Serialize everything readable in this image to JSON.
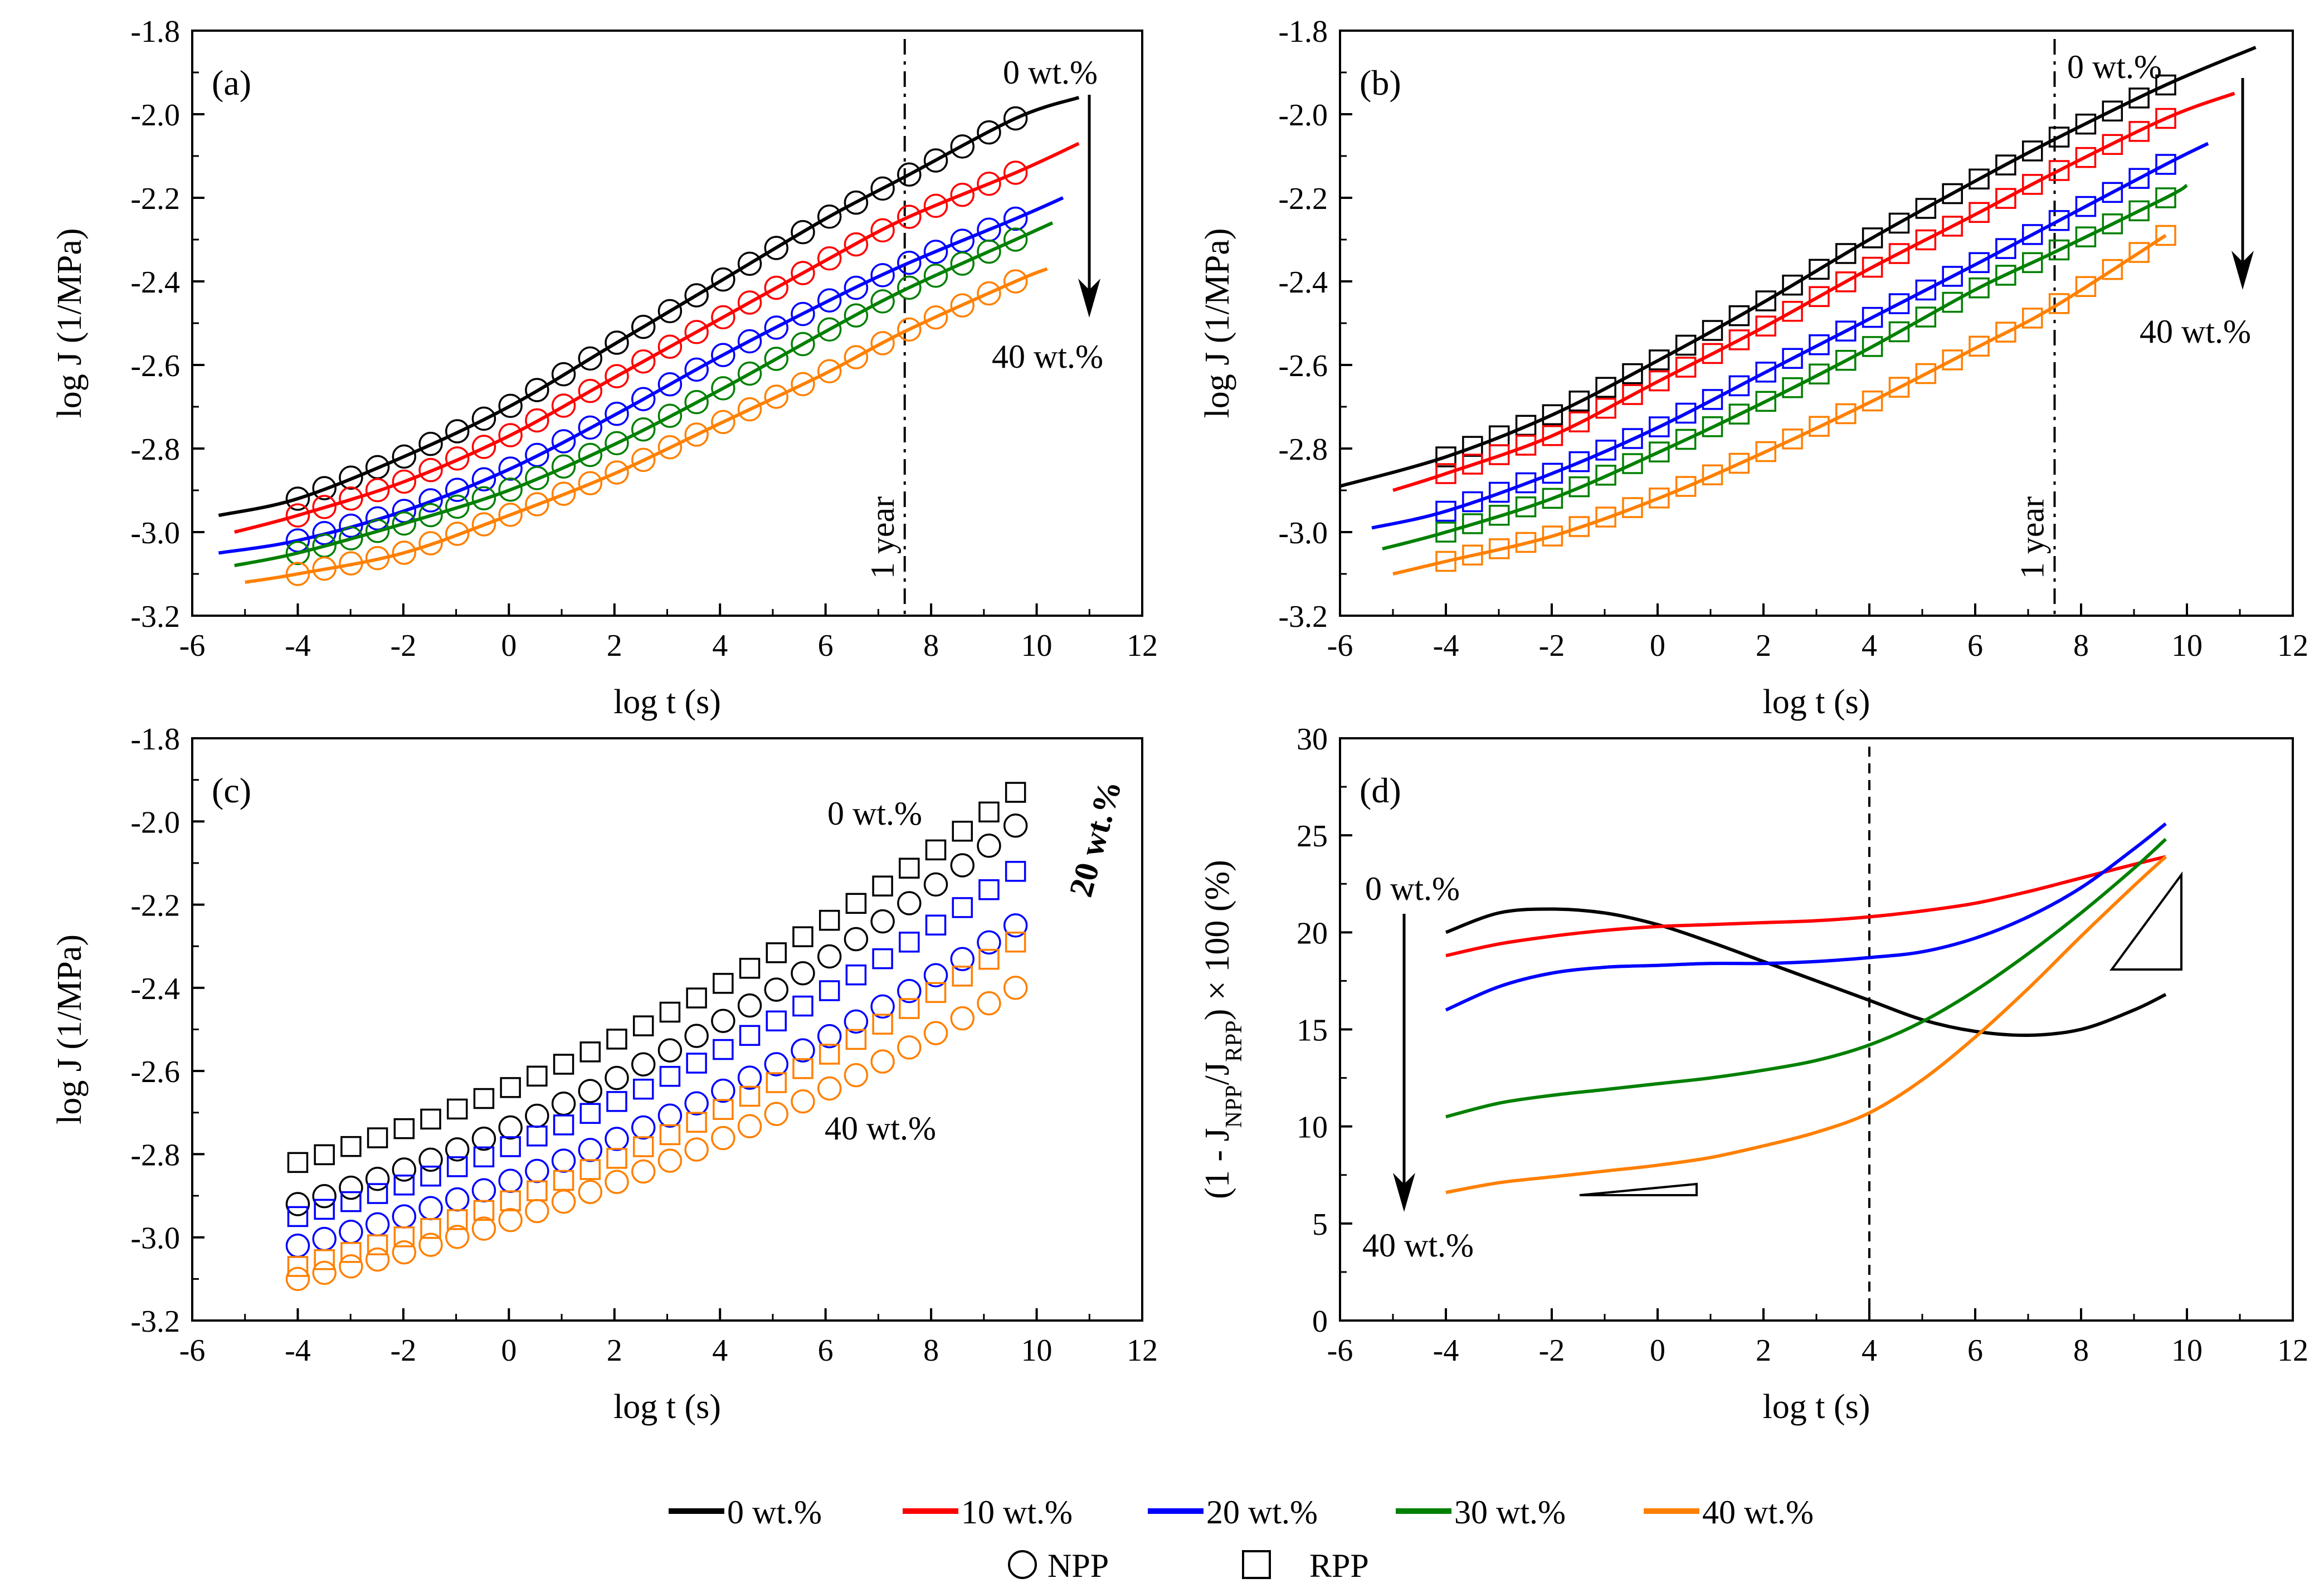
{
  "chart_data": [
    {
      "panel": "(a)",
      "type": "line",
      "xlabel": "log t (s)",
      "ylabel": "log J (1/MPa)",
      "xlim": [
        -6,
        12
      ],
      "ylim": [
        -3.2,
        -1.8
      ],
      "xticks": [
        -6,
        -4,
        -2,
        0,
        2,
        4,
        6,
        8,
        10,
        12
      ],
      "yticks": [
        -3.2,
        -3.0,
        -2.8,
        -2.6,
        -2.4,
        -2.2,
        -2.0,
        -1.8
      ],
      "xtick_labels": [
        "-6",
        "-4",
        "-2",
        "0",
        "2",
        "4",
        "6",
        "8",
        "10",
        "12"
      ],
      "ytick_labels": [
        "-3.2",
        "-3.0",
        "-2.8",
        "-2.6",
        "-2.4",
        "-2.2",
        "-2.0",
        "-1.8"
      ],
      "series": [
        {
          "name": "0 wt.%",
          "color": "#000000",
          "marker": "circle",
          "line_x": [
            -5.5,
            -4,
            -2,
            0,
            2,
            4,
            6,
            7.5,
            9.6,
            10.8
          ],
          "line_y": [
            -2.96,
            -2.92,
            -2.82,
            -2.7,
            -2.55,
            -2.4,
            -2.25,
            -2.15,
            -2.01,
            -1.96
          ],
          "points_x_range": [
            -4,
            9.6
          ],
          "points_y_range": [
            -2.92,
            -2.01
          ]
        },
        {
          "name": "10 wt.%",
          "color": "#ff0000",
          "marker": "circle",
          "line_x": [
            -5.2,
            -4,
            -2,
            0,
            2,
            4,
            6,
            7.5,
            9.6,
            10.8
          ],
          "line_y": [
            -3.0,
            -2.96,
            -2.88,
            -2.77,
            -2.63,
            -2.49,
            -2.35,
            -2.25,
            -2.14,
            -2.07
          ],
          "points_x_range": [
            -4,
            9.6
          ],
          "points_y_range": [
            -2.96,
            -2.14
          ]
        },
        {
          "name": "20 wt.%",
          "color": "#0000ff",
          "marker": "circle",
          "line_x": [
            -5.5,
            -4,
            -2,
            0,
            2,
            4,
            6,
            7.5,
            9.6,
            10.5
          ],
          "line_y": [
            -3.05,
            -3.02,
            -2.95,
            -2.85,
            -2.72,
            -2.58,
            -2.45,
            -2.36,
            -2.25,
            -2.2
          ],
          "points_x_range": [
            -4,
            9.6
          ],
          "points_y_range": [
            -3.02,
            -2.25
          ]
        },
        {
          "name": "30 wt.%",
          "color": "#008000",
          "marker": "circle",
          "line_x": [
            -5.2,
            -4,
            -2,
            0,
            2,
            4,
            6,
            7.5,
            9.6,
            10.3
          ],
          "line_y": [
            -3.08,
            -3.05,
            -2.98,
            -2.9,
            -2.79,
            -2.66,
            -2.52,
            -2.42,
            -2.3,
            -2.26
          ],
          "points_x_range": [
            -4,
            9.6
          ],
          "points_y_range": [
            -3.05,
            -2.3
          ]
        },
        {
          "name": "40 wt.%",
          "color": "#ff8000",
          "marker": "circle",
          "line_x": [
            -5.0,
            -4,
            -2,
            0,
            2,
            4,
            6,
            7.5,
            9.6,
            10.2
          ],
          "line_y": [
            -3.12,
            -3.1,
            -3.05,
            -2.96,
            -2.86,
            -2.74,
            -2.62,
            -2.52,
            -2.4,
            -2.37
          ],
          "points_x_range": [
            -4,
            9.6
          ],
          "points_y_range": [
            -3.1,
            -2.4
          ]
        }
      ],
      "vline": {
        "x": 7.5,
        "style": "dashdot",
        "label": "1 year"
      },
      "annotations": {
        "top": "0 wt.%",
        "bottom": "40 wt.%"
      }
    },
    {
      "panel": "(b)",
      "type": "line",
      "xlabel": "log t (s)",
      "ylabel": "log J (1/MPa)",
      "xlim": [
        -6,
        12
      ],
      "ylim": [
        -3.2,
        -1.8
      ],
      "xticks": [
        -6,
        -4,
        -2,
        0,
        2,
        4,
        6,
        8,
        10,
        12
      ],
      "yticks": [
        -3.2,
        -3.0,
        -2.8,
        -2.6,
        -2.4,
        -2.2,
        -2.0,
        -1.8
      ],
      "xtick_labels": [
        "-6",
        "-4",
        "-2",
        "0",
        "2",
        "4",
        "6",
        "8",
        "10",
        "12"
      ],
      "ytick_labels": [
        "-3.2",
        "-3.0",
        "-2.8",
        "-2.6",
        "-2.4",
        "-2.2",
        "-2.0",
        "-1.8"
      ],
      "series": [
        {
          "name": "0 wt.%",
          "color": "#000000",
          "marker": "square",
          "line_x": [
            -6,
            -4,
            -2,
            0,
            2,
            4,
            6,
            7.5,
            9.6,
            11.3
          ],
          "line_y": [
            -2.89,
            -2.82,
            -2.72,
            -2.59,
            -2.45,
            -2.3,
            -2.16,
            -2.06,
            -1.93,
            -1.84
          ],
          "points_x_range": [
            -4,
            9.6
          ],
          "points_y_range": [
            -2.82,
            -1.93
          ]
        },
        {
          "name": "10 wt.%",
          "color": "#ff0000",
          "marker": "square",
          "line_x": [
            -5,
            -4,
            -2,
            0,
            2,
            4,
            6,
            7.5,
            9.6,
            10.9
          ],
          "line_y": [
            -2.9,
            -2.86,
            -2.77,
            -2.64,
            -2.51,
            -2.37,
            -2.24,
            -2.14,
            -2.01,
            -1.95
          ],
          "points_x_range": [
            -4,
            9.6
          ],
          "points_y_range": [
            -2.86,
            -2.01
          ]
        },
        {
          "name": "20 wt.%",
          "color": "#0000ff",
          "marker": "square",
          "line_x": [
            -5.4,
            -4,
            -2,
            0,
            2,
            4,
            6,
            7.5,
            9.6,
            10.4
          ],
          "line_y": [
            -2.99,
            -2.95,
            -2.86,
            -2.75,
            -2.62,
            -2.49,
            -2.36,
            -2.26,
            -2.12,
            -2.07
          ],
          "points_x_range": [
            -4,
            9.6
          ],
          "points_y_range": [
            -2.95,
            -2.12
          ]
        },
        {
          "name": "30 wt.%",
          "color": "#008000",
          "marker": "square",
          "line_x": [
            -5.2,
            -4,
            -2,
            0,
            2,
            4,
            6,
            7.5,
            9.6,
            10.0
          ],
          "line_y": [
            -3.04,
            -3.0,
            -2.92,
            -2.81,
            -2.69,
            -2.56,
            -2.42,
            -2.33,
            -2.2,
            -2.17
          ],
          "points_x_range": [
            -4,
            9.6
          ],
          "points_y_range": [
            -3.0,
            -2.2
          ]
        },
        {
          "name": "40 wt.%",
          "color": "#ff8000",
          "marker": "square",
          "line_x": [
            -5.0,
            -4,
            -2,
            0,
            2,
            4,
            6,
            7.5,
            9.6
          ],
          "line_y": [
            -3.1,
            -3.07,
            -3.01,
            -2.92,
            -2.81,
            -2.69,
            -2.56,
            -2.46,
            -2.29
          ],
          "points_x_range": [
            -4,
            9.6
          ],
          "points_y_range": [
            -3.07,
            -2.29
          ]
        }
      ],
      "vline": {
        "x": 7.5,
        "style": "dashdot",
        "label": "1 year"
      },
      "annotations": {
        "top": "0 wt.%",
        "bottom": "40 wt.%"
      }
    },
    {
      "panel": "(c)",
      "type": "scatter",
      "xlabel": "log t (s)",
      "ylabel": "log J (1/MPa)",
      "xlim": [
        -6,
        12
      ],
      "ylim": [
        -3.2,
        -1.8
      ],
      "xticks": [
        -6,
        -4,
        -2,
        0,
        2,
        4,
        6,
        8,
        10,
        12
      ],
      "yticks": [
        -3.2,
        -3.0,
        -2.8,
        -2.6,
        -2.4,
        -2.2,
        -2.0,
        -1.8
      ],
      "xtick_labels": [
        "-6",
        "-4",
        "-2",
        "0",
        "2",
        "4",
        "6",
        "8",
        "10",
        "12"
      ],
      "ytick_labels": [
        "-3.2",
        "-3.0",
        "-2.8",
        "-2.6",
        "-2.4",
        "-2.2",
        "-2.0",
        "-1.8"
      ],
      "series": [
        {
          "name": "0 wt.% RPP",
          "color": "#000000",
          "marker": "square",
          "points_x_range": [
            -4,
            9.6
          ],
          "points_y_range": [
            -2.82,
            -1.93
          ]
        },
        {
          "name": "0 wt.% NPP",
          "color": "#000000",
          "marker": "circle",
          "points_x_range": [
            -4,
            9.6
          ],
          "points_y_range": [
            -2.92,
            -2.01
          ]
        },
        {
          "name": "20 wt.% RPP",
          "color": "#0000ff",
          "marker": "square",
          "points_x_range": [
            -4,
            9.6
          ],
          "points_y_range": [
            -2.95,
            -2.12
          ]
        },
        {
          "name": "20 wt.% NPP",
          "color": "#0000ff",
          "marker": "circle",
          "points_x_range": [
            -4,
            9.6
          ],
          "points_y_range": [
            -3.02,
            -2.25
          ]
        },
        {
          "name": "40 wt.% RPP",
          "color": "#ff8000",
          "marker": "square",
          "points_x_range": [
            -4,
            9.6
          ],
          "points_y_range": [
            -3.07,
            -2.29
          ]
        },
        {
          "name": "40 wt.% NPP",
          "color": "#ff8000",
          "marker": "circle",
          "points_x_range": [
            -4,
            9.6
          ],
          "points_y_range": [
            -3.1,
            -2.4
          ]
        }
      ],
      "annotations": {
        "top": "0 wt.%",
        "middle": "20 wt.%",
        "bottom": "40 wt.%"
      }
    },
    {
      "panel": "(d)",
      "type": "line",
      "xlabel": "log t (s)",
      "ylabel": "(1 - J_NPP/J_RPP) × 100 (%)",
      "xlim": [
        -6,
        12
      ],
      "ylim": [
        0,
        30
      ],
      "xticks": [
        -6,
        -4,
        -2,
        0,
        2,
        4,
        6,
        8,
        10,
        12
      ],
      "yticks": [
        0,
        5,
        10,
        15,
        20,
        25,
        30
      ],
      "xtick_labels": [
        "-6",
        "-4",
        "-2",
        "0",
        "2",
        "4",
        "6",
        "8",
        "10",
        "12"
      ],
      "ytick_labels": [
        "0",
        "5",
        "10",
        "15",
        "20",
        "25",
        "30"
      ],
      "series": [
        {
          "name": "0 wt.%",
          "color": "#000000",
          "x": [
            -4,
            -3,
            -2,
            -1,
            0,
            1,
            2,
            3,
            4,
            5,
            6,
            7,
            8,
            9,
            9.6
          ],
          "y": [
            20.0,
            21.0,
            21.2,
            21.0,
            20.4,
            19.5,
            18.5,
            17.5,
            16.5,
            15.5,
            14.9,
            14.7,
            15.0,
            16.0,
            16.8
          ]
        },
        {
          "name": "10 wt.%",
          "color": "#ff0000",
          "x": [
            -4,
            -3,
            -2,
            -1,
            0,
            1,
            2,
            3,
            4,
            5,
            6,
            7,
            8,
            9,
            9.6
          ],
          "y": [
            18.8,
            19.4,
            19.8,
            20.1,
            20.3,
            20.4,
            20.5,
            20.6,
            20.8,
            21.1,
            21.5,
            22.1,
            22.8,
            23.5,
            23.9
          ]
        },
        {
          "name": "20 wt.%",
          "color": "#0000ff",
          "x": [
            -4,
            -3,
            -2,
            -1,
            0,
            1,
            2,
            3,
            4,
            5,
            6,
            7,
            8,
            9,
            9.6
          ],
          "y": [
            16.0,
            17.2,
            17.9,
            18.2,
            18.3,
            18.4,
            18.4,
            18.5,
            18.7,
            19.0,
            19.7,
            20.8,
            22.3,
            24.3,
            25.6
          ]
        },
        {
          "name": "30 wt.%",
          "color": "#008000",
          "x": [
            -4,
            -3,
            -2,
            -1,
            0,
            1,
            2,
            3,
            4,
            5,
            6,
            7,
            8,
            9,
            9.6
          ],
          "y": [
            10.5,
            11.2,
            11.6,
            11.9,
            12.2,
            12.5,
            12.9,
            13.4,
            14.2,
            15.4,
            17.0,
            18.9,
            21.0,
            23.3,
            24.8
          ]
        },
        {
          "name": "40 wt.%",
          "color": "#ff8000",
          "x": [
            -4,
            -3,
            -2,
            -1,
            0,
            1,
            2,
            3,
            4,
            5,
            6,
            7,
            8,
            9,
            9.6
          ],
          "y": [
            6.6,
            7.1,
            7.4,
            7.7,
            8.0,
            8.4,
            9.0,
            9.7,
            10.7,
            12.4,
            14.6,
            17.1,
            19.8,
            22.4,
            23.9
          ]
        }
      ],
      "vline": {
        "x": 4,
        "style": "dashed"
      },
      "annotations": {
        "top": "0 wt.%",
        "bottom": "40 wt.%"
      }
    }
  ],
  "legend": {
    "lines": [
      {
        "label": "0 wt.%",
        "color": "#000000"
      },
      {
        "label": "10 wt.%",
        "color": "#ff0000"
      },
      {
        "label": "20 wt.%",
        "color": "#0000ff"
      },
      {
        "label": "30 wt.%",
        "color": "#008000"
      },
      {
        "label": "40 wt.%",
        "color": "#ff8000"
      }
    ],
    "markers": [
      {
        "label": "NPP",
        "symbol": "circle"
      },
      {
        "label": "RPP",
        "symbol": "square"
      }
    ]
  }
}
